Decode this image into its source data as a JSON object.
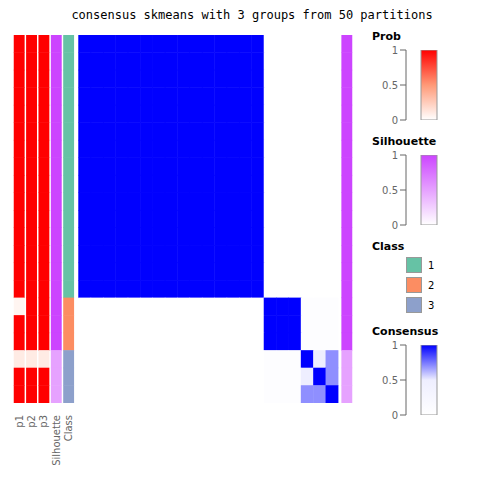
{
  "chart_data": {
    "type": "heatmap",
    "title": "consensus skmeans with 3 groups from 50 partitions",
    "cells": [
      [
        1.0,
        1.0,
        1.0,
        1.0,
        1.0,
        1.0,
        1.0,
        1.0,
        1.0,
        1.0,
        1.0,
        1.0,
        1.0,
        1.0,
        1.0,
        0.0,
        0.0,
        0.0,
        0.0,
        0.0,
        0.0
      ],
      [
        1.0,
        1.0,
        1.0,
        1.0,
        1.0,
        1.0,
        1.0,
        1.0,
        1.0,
        1.0,
        1.0,
        1.0,
        1.0,
        1.0,
        1.0,
        0.0,
        0.0,
        0.0,
        0.0,
        0.0,
        0.0
      ],
      [
        1.0,
        1.0,
        1.0,
        1.0,
        1.0,
        1.0,
        1.0,
        1.0,
        1.0,
        1.0,
        1.0,
        1.0,
        1.0,
        1.0,
        1.0,
        0.0,
        0.0,
        0.0,
        0.0,
        0.0,
        0.0
      ],
      [
        1.0,
        1.0,
        1.0,
        1.0,
        1.0,
        1.0,
        1.0,
        1.0,
        1.0,
        1.0,
        1.0,
        1.0,
        1.0,
        1.0,
        1.0,
        0.0,
        0.0,
        0.0,
        0.0,
        0.0,
        0.0
      ],
      [
        1.0,
        1.0,
        1.0,
        1.0,
        1.0,
        1.0,
        1.0,
        1.0,
        1.0,
        1.0,
        1.0,
        1.0,
        1.0,
        1.0,
        1.0,
        0.0,
        0.0,
        0.0,
        0.0,
        0.0,
        0.0
      ],
      [
        1.0,
        1.0,
        1.0,
        1.0,
        1.0,
        1.0,
        1.0,
        1.0,
        1.0,
        1.0,
        1.0,
        1.0,
        1.0,
        1.0,
        1.0,
        0.0,
        0.0,
        0.0,
        0.0,
        0.0,
        0.0
      ],
      [
        1.0,
        1.0,
        1.0,
        1.0,
        1.0,
        1.0,
        1.0,
        1.0,
        1.0,
        1.0,
        1.0,
        1.0,
        1.0,
        1.0,
        1.0,
        0.0,
        0.0,
        0.0,
        0.0,
        0.0,
        0.0
      ],
      [
        1.0,
        1.0,
        1.0,
        1.0,
        1.0,
        1.0,
        1.0,
        1.0,
        1.0,
        1.0,
        1.0,
        1.0,
        1.0,
        1.0,
        1.0,
        0.0,
        0.0,
        0.0,
        0.0,
        0.0,
        0.0
      ],
      [
        1.0,
        1.0,
        1.0,
        1.0,
        1.0,
        1.0,
        1.0,
        1.0,
        1.0,
        1.0,
        1.0,
        1.0,
        1.0,
        1.0,
        1.0,
        0.0,
        0.0,
        0.0,
        0.0,
        0.0,
        0.0
      ],
      [
        1.0,
        1.0,
        1.0,
        1.0,
        1.0,
        1.0,
        1.0,
        1.0,
        1.0,
        1.0,
        1.0,
        1.0,
        1.0,
        1.0,
        1.0,
        0.0,
        0.0,
        0.0,
        0.0,
        0.0,
        0.0
      ],
      [
        1.0,
        1.0,
        1.0,
        1.0,
        1.0,
        1.0,
        1.0,
        1.0,
        1.0,
        1.0,
        1.0,
        1.0,
        1.0,
        1.0,
        1.0,
        0.0,
        0.0,
        0.0,
        0.0,
        0.0,
        0.0
      ],
      [
        1.0,
        1.0,
        1.0,
        1.0,
        1.0,
        1.0,
        1.0,
        1.0,
        1.0,
        1.0,
        1.0,
        1.0,
        1.0,
        1.0,
        1.0,
        0.0,
        0.0,
        0.0,
        0.0,
        0.0,
        0.0
      ],
      [
        1.0,
        1.0,
        1.0,
        1.0,
        1.0,
        1.0,
        1.0,
        1.0,
        1.0,
        1.0,
        1.0,
        1.0,
        1.0,
        1.0,
        1.0,
        0.0,
        0.0,
        0.0,
        0.0,
        0.0,
        0.0
      ],
      [
        1.0,
        1.0,
        1.0,
        1.0,
        1.0,
        1.0,
        1.0,
        1.0,
        1.0,
        1.0,
        1.0,
        1.0,
        1.0,
        1.0,
        1.0,
        0.0,
        0.0,
        0.0,
        0.0,
        0.0,
        0.0
      ],
      [
        1.0,
        1.0,
        1.0,
        1.0,
        1.0,
        1.0,
        1.0,
        1.0,
        1.0,
        1.0,
        1.0,
        1.0,
        1.0,
        1.0,
        1.0,
        0.0,
        0.0,
        0.0,
        0.0,
        0.0,
        0.0
      ],
      [
        0.0,
        0.0,
        0.0,
        0.0,
        0.0,
        0.0,
        0.0,
        0.0,
        0.0,
        0.0,
        0.0,
        0.0,
        0.0,
        0.0,
        0.0,
        1.0,
        1.0,
        1.0,
        0.07,
        0.07,
        0.07
      ],
      [
        0.0,
        0.0,
        0.0,
        0.0,
        0.0,
        0.0,
        0.0,
        0.0,
        0.0,
        0.0,
        0.0,
        0.0,
        0.0,
        0.0,
        0.0,
        1.0,
        1.0,
        1.0,
        0.07,
        0.07,
        0.07
      ],
      [
        0.0,
        0.0,
        0.0,
        0.0,
        0.0,
        0.0,
        0.0,
        0.0,
        0.0,
        0.0,
        0.0,
        0.0,
        0.0,
        0.0,
        0.0,
        1.0,
        1.0,
        1.0,
        0.07,
        0.07,
        0.07
      ],
      [
        0.0,
        0.0,
        0.0,
        0.0,
        0.0,
        0.0,
        0.0,
        0.0,
        0.0,
        0.0,
        0.0,
        0.0,
        0.0,
        0.0,
        0.0,
        0.07,
        0.07,
        0.07,
        1.0,
        0.5,
        0.7
      ],
      [
        0.0,
        0.0,
        0.0,
        0.0,
        0.0,
        0.0,
        0.0,
        0.0,
        0.0,
        0.0,
        0.0,
        0.0,
        0.0,
        0.0,
        0.0,
        0.07,
        0.07,
        0.07,
        0.5,
        1.0,
        0.7
      ],
      [
        0.0,
        0.0,
        0.0,
        0.0,
        0.0,
        0.0,
        0.0,
        0.0,
        0.0,
        0.0,
        0.0,
        0.0,
        0.0,
        0.0,
        0.0,
        0.07,
        0.07,
        0.07,
        0.7,
        0.7,
        1.0
      ]
    ],
    "cells_colorbar": "Consensus",
    "strips": [
      {
        "name": "p1",
        "values": [
          1.0,
          1.0,
          1.0,
          1.0,
          1.0,
          1.0,
          1.0,
          1.0,
          1.0,
          1.0,
          1.0,
          1.0,
          1.0,
          1.0,
          1.0,
          0.05,
          1.0,
          1.0,
          0.1,
          1.0,
          1.0
        ],
        "colorbar": "Prob"
      },
      {
        "name": "p2",
        "values": [
          1.0,
          1.0,
          1.0,
          1.0,
          1.0,
          1.0,
          1.0,
          1.0,
          1.0,
          1.0,
          1.0,
          1.0,
          1.0,
          1.0,
          1.0,
          1.0,
          1.0,
          1.0,
          0.1,
          1.0,
          1.0
        ],
        "colorbar": "Prob"
      },
      {
        "name": "p3",
        "values": [
          1.0,
          1.0,
          1.0,
          1.0,
          1.0,
          1.0,
          1.0,
          1.0,
          1.0,
          1.0,
          1.0,
          1.0,
          1.0,
          1.0,
          1.0,
          1.0,
          1.0,
          1.0,
          0.1,
          1.0,
          1.0
        ],
        "colorbar": "Prob"
      },
      {
        "name": "Silhouette",
        "values": [
          1.0,
          1.0,
          1.0,
          1.0,
          1.0,
          1.0,
          1.0,
          1.0,
          1.0,
          1.0,
          1.0,
          1.0,
          1.0,
          1.0,
          1.0,
          1.0,
          1.0,
          1.0,
          0.5,
          0.5,
          0.5
        ],
        "colorbar": "Silhouette"
      },
      {
        "name": "Class",
        "values": [
          1,
          1,
          1,
          1,
          1,
          1,
          1,
          1,
          1,
          1,
          1,
          1,
          1,
          1,
          1,
          2,
          2,
          2,
          3,
          3,
          3
        ],
        "colorbar": "Class"
      }
    ],
    "right_strip": {
      "values": [
        1.0,
        1.0,
        1.0,
        1.0,
        1.0,
        1.0,
        1.0,
        1.0,
        1.0,
        1.0,
        1.0,
        1.0,
        1.0,
        1.0,
        1.0,
        1.0,
        1.0,
        1.0,
        0.5,
        0.5,
        0.5
      ],
      "colorbar": "Silhouette"
    },
    "colorbars": [
      {
        "name": "Prob",
        "colors": [
          "#FFFFFF",
          "#FF9977",
          "#FF0000"
        ],
        "range": [
          0,
          1
        ],
        "ticks": [
          0,
          0.5,
          1
        ]
      },
      {
        "name": "Silhouette",
        "colors": [
          "#FFFFFF",
          "#CC44FF"
        ],
        "range": [
          0,
          1
        ],
        "ticks": [
          0,
          0.5,
          1
        ]
      },
      {
        "name": "Class",
        "classes": [
          1,
          2,
          3
        ],
        "colors": [
          "#66C2A5",
          "#FC8D62",
          "#8DA0CB"
        ]
      },
      {
        "name": "Consensus",
        "colors": [
          "#FFFFFF",
          "#EEEEFF",
          "#0000FF"
        ],
        "range": [
          0,
          1
        ],
        "ticks": [
          0,
          0.5,
          1
        ]
      }
    ]
  }
}
